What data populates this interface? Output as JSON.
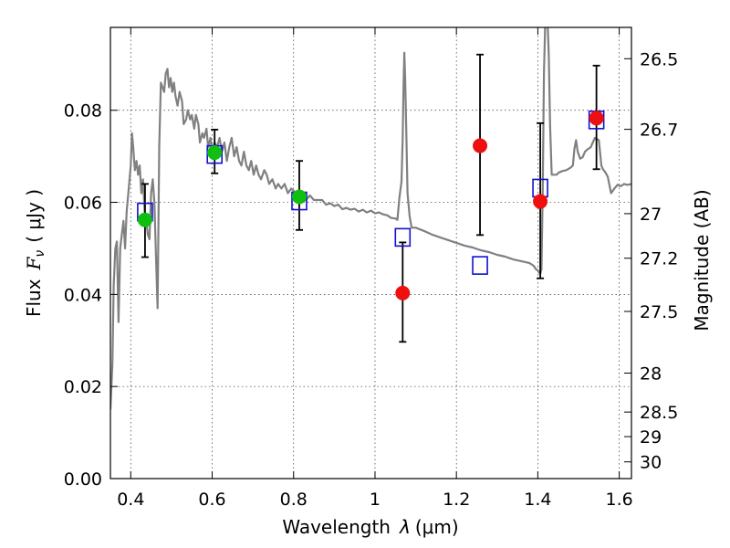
{
  "chart_data": {
    "type": "scatter",
    "xlabel_text": "Wavelength",
    "xlabel_symbol": "λ",
    "xlabel_unit": "(μm)",
    "ylabel_text": "Flux",
    "ylabel_symbol": "F",
    "ylabel_subscript": "ν",
    "ylabel_unit": "( μJy )",
    "y2label": "Magnitude (AB)",
    "xlim": [
      0.35,
      1.63
    ],
    "ylim": [
      0.0,
      0.098
    ],
    "grid": true,
    "x_ticks": [
      0.4,
      0.6,
      0.8,
      1.0,
      1.2,
      1.4,
      1.6
    ],
    "x_tick_labels": [
      "0.4",
      "0.6",
      "0.8",
      "1",
      "1.2",
      "1.4",
      "1.6"
    ],
    "y_ticks": [
      0.0,
      0.02,
      0.04,
      0.06,
      0.08
    ],
    "y_tick_labels": [
      "0.00",
      "0.02",
      "0.04",
      "0.06",
      "0.08"
    ],
    "mag_ticks": [
      26.5,
      26.7,
      27,
      27.2,
      27.5,
      28,
      28.5,
      29,
      30
    ],
    "mag_tick_labels": [
      "26.5",
      "26.7",
      "27",
      "27.2",
      "27.5",
      "28",
      "28.5",
      "29",
      "30"
    ],
    "colors": {
      "sed": "#808080",
      "detection": "#10c010",
      "upper": "#ee1010",
      "model": "#1010d0",
      "errorbar": "#000000"
    },
    "observed_points": [
      {
        "x": 0.435,
        "y": 0.0562,
        "err_low": 0.0081,
        "err_high": 0.0078,
        "kind": "detection"
      },
      {
        "x": 0.606,
        "y": 0.0708,
        "err_low": 0.0045,
        "err_high": 0.005,
        "kind": "detection"
      },
      {
        "x": 0.814,
        "y": 0.0612,
        "err_low": 0.0072,
        "err_high": 0.0078,
        "kind": "detection"
      },
      {
        "x": 1.068,
        "y": 0.0403,
        "err_low": 0.0106,
        "err_high": 0.011,
        "kind": "upper"
      },
      {
        "x": 1.258,
        "y": 0.0723,
        "err_low": 0.0194,
        "err_high": 0.0198,
        "kind": "upper"
      },
      {
        "x": 1.406,
        "y": 0.0602,
        "err_low": 0.0167,
        "err_high": 0.017,
        "kind": "upper"
      },
      {
        "x": 1.544,
        "y": 0.0783,
        "err_low": 0.0111,
        "err_high": 0.0114,
        "kind": "upper"
      }
    ],
    "model_points": [
      {
        "x": 0.435,
        "y": 0.0578
      },
      {
        "x": 0.606,
        "y": 0.0703
      },
      {
        "x": 0.814,
        "y": 0.0602
      },
      {
        "x": 1.068,
        "y": 0.0523
      },
      {
        "x": 1.258,
        "y": 0.0462
      },
      {
        "x": 1.406,
        "y": 0.063
      },
      {
        "x": 1.544,
        "y": 0.0778
      }
    ],
    "sed_curve": [
      [
        0.35,
        0.015
      ],
      [
        0.355,
        0.025
      ],
      [
        0.358,
        0.042
      ],
      [
        0.362,
        0.05
      ],
      [
        0.366,
        0.0515
      ],
      [
        0.37,
        0.034
      ],
      [
        0.374,
        0.05
      ],
      [
        0.378,
        0.053
      ],
      [
        0.382,
        0.056
      ],
      [
        0.386,
        0.05
      ],
      [
        0.39,
        0.058
      ],
      [
        0.395,
        0.063
      ],
      [
        0.4,
        0.068
      ],
      [
        0.403,
        0.075
      ],
      [
        0.406,
        0.072
      ],
      [
        0.41,
        0.067
      ],
      [
        0.414,
        0.069
      ],
      [
        0.418,
        0.066
      ],
      [
        0.422,
        0.068
      ],
      [
        0.426,
        0.062
      ],
      [
        0.43,
        0.065
      ],
      [
        0.434,
        0.058
      ],
      [
        0.438,
        0.056
      ],
      [
        0.442,
        0.053
      ],
      [
        0.446,
        0.052
      ],
      [
        0.45,
        0.062
      ],
      [
        0.454,
        0.065
      ],
      [
        0.458,
        0.06
      ],
      [
        0.462,
        0.048
      ],
      [
        0.466,
        0.037
      ],
      [
        0.47,
        0.072
      ],
      [
        0.474,
        0.086
      ],
      [
        0.478,
        0.085
      ],
      [
        0.482,
        0.084
      ],
      [
        0.486,
        0.088
      ],
      [
        0.49,
        0.089
      ],
      [
        0.494,
        0.085
      ],
      [
        0.498,
        0.087
      ],
      [
        0.502,
        0.084
      ],
      [
        0.506,
        0.086
      ],
      [
        0.51,
        0.083
      ],
      [
        0.515,
        0.081
      ],
      [
        0.52,
        0.084
      ],
      [
        0.526,
        0.082
      ],
      [
        0.53,
        0.077
      ],
      [
        0.536,
        0.078
      ],
      [
        0.54,
        0.08
      ],
      [
        0.546,
        0.078
      ],
      [
        0.55,
        0.079
      ],
      [
        0.556,
        0.076
      ],
      [
        0.56,
        0.079
      ],
      [
        0.566,
        0.077
      ],
      [
        0.57,
        0.073
      ],
      [
        0.576,
        0.075
      ],
      [
        0.58,
        0.074
      ],
      [
        0.586,
        0.076
      ],
      [
        0.59,
        0.072
      ],
      [
        0.596,
        0.074
      ],
      [
        0.6,
        0.071
      ],
      [
        0.606,
        0.073
      ],
      [
        0.612,
        0.072
      ],
      [
        0.618,
        0.074
      ],
      [
        0.624,
        0.071
      ],
      [
        0.63,
        0.073
      ],
      [
        0.636,
        0.069
      ],
      [
        0.642,
        0.072
      ],
      [
        0.648,
        0.074
      ],
      [
        0.654,
        0.07
      ],
      [
        0.66,
        0.072
      ],
      [
        0.666,
        0.069
      ],
      [
        0.672,
        0.068
      ],
      [
        0.678,
        0.071
      ],
      [
        0.684,
        0.068
      ],
      [
        0.69,
        0.067
      ],
      [
        0.696,
        0.069
      ],
      [
        0.702,
        0.066
      ],
      [
        0.708,
        0.068
      ],
      [
        0.714,
        0.066
      ],
      [
        0.72,
        0.065
      ],
      [
        0.728,
        0.067
      ],
      [
        0.734,
        0.066
      ],
      [
        0.74,
        0.064
      ],
      [
        0.748,
        0.065
      ],
      [
        0.756,
        0.063
      ],
      [
        0.762,
        0.064
      ],
      [
        0.77,
        0.063
      ],
      [
        0.778,
        0.064
      ],
      [
        0.786,
        0.062
      ],
      [
        0.794,
        0.063
      ],
      [
        0.8,
        0.0625
      ],
      [
        0.81,
        0.0615
      ],
      [
        0.82,
        0.062
      ],
      [
        0.83,
        0.0605
      ],
      [
        0.84,
        0.0615
      ],
      [
        0.85,
        0.0605
      ],
      [
        0.86,
        0.0605
      ],
      [
        0.87,
        0.0605
      ],
      [
        0.88,
        0.0595
      ],
      [
        0.89,
        0.0598
      ],
      [
        0.9,
        0.0592
      ],
      [
        0.91,
        0.0595
      ],
      [
        0.92,
        0.0585
      ],
      [
        0.93,
        0.0588
      ],
      [
        0.94,
        0.0584
      ],
      [
        0.95,
        0.0586
      ],
      [
        0.96,
        0.058
      ],
      [
        0.97,
        0.0584
      ],
      [
        0.98,
        0.0578
      ],
      [
        0.99,
        0.0582
      ],
      [
        1.0,
        0.0576
      ],
      [
        1.01,
        0.0578
      ],
      [
        1.02,
        0.0574
      ],
      [
        1.03,
        0.0572
      ],
      [
        1.04,
        0.0566
      ],
      [
        1.05,
        0.0565
      ],
      [
        1.055,
        0.0562
      ],
      [
        1.06,
        0.061
      ],
      [
        1.065,
        0.0645
      ],
      [
        1.068,
        0.074
      ],
      [
        1.07,
        0.085
      ],
      [
        1.072,
        0.0925
      ],
      [
        1.074,
        0.087
      ],
      [
        1.077,
        0.075
      ],
      [
        1.08,
        0.062
      ],
      [
        1.085,
        0.057
      ],
      [
        1.09,
        0.0545
      ],
      [
        1.1,
        0.0545
      ],
      [
        1.12,
        0.0538
      ],
      [
        1.14,
        0.053
      ],
      [
        1.16,
        0.0524
      ],
      [
        1.18,
        0.0518
      ],
      [
        1.2,
        0.0512
      ],
      [
        1.22,
        0.0506
      ],
      [
        1.24,
        0.0502
      ],
      [
        1.26,
        0.0496
      ],
      [
        1.28,
        0.0492
      ],
      [
        1.3,
        0.0486
      ],
      [
        1.32,
        0.0482
      ],
      [
        1.34,
        0.0476
      ],
      [
        1.36,
        0.0472
      ],
      [
        1.38,
        0.0468
      ],
      [
        1.39,
        0.0462
      ],
      [
        1.395,
        0.0455
      ],
      [
        1.4,
        0.0452
      ],
      [
        1.403,
        0.0448
      ],
      [
        1.406,
        0.0445
      ],
      [
        1.409,
        0.0454
      ],
      [
        1.412,
        0.063
      ],
      [
        1.415,
        0.088
      ],
      [
        1.418,
        0.098
      ],
      [
        1.421,
        0.099
      ],
      [
        1.424,
        0.099
      ],
      [
        1.427,
        0.092
      ],
      [
        1.43,
        0.077
      ],
      [
        1.434,
        0.066
      ],
      [
        1.44,
        0.066
      ],
      [
        1.446,
        0.066
      ],
      [
        1.452,
        0.0665
      ],
      [
        1.46,
        0.0668
      ],
      [
        1.47,
        0.067
      ],
      [
        1.48,
        0.0675
      ],
      [
        1.486,
        0.068
      ],
      [
        1.49,
        0.0716
      ],
      [
        1.494,
        0.0735
      ],
      [
        1.498,
        0.071
      ],
      [
        1.504,
        0.0695
      ],
      [
        1.51,
        0.0698
      ],
      [
        1.516,
        0.071
      ],
      [
        1.522,
        0.0715
      ],
      [
        1.53,
        0.072
      ],
      [
        1.54,
        0.074
      ],
      [
        1.55,
        0.0735
      ],
      [
        1.556,
        0.068
      ],
      [
        1.56,
        0.0672
      ],
      [
        1.566,
        0.0665
      ],
      [
        1.572,
        0.0655
      ],
      [
        1.58,
        0.062
      ],
      [
        1.588,
        0.063
      ],
      [
        1.596,
        0.0638
      ],
      [
        1.604,
        0.0635
      ],
      [
        1.612,
        0.064
      ],
      [
        1.62,
        0.0638
      ],
      [
        1.63,
        0.064
      ]
    ]
  }
}
